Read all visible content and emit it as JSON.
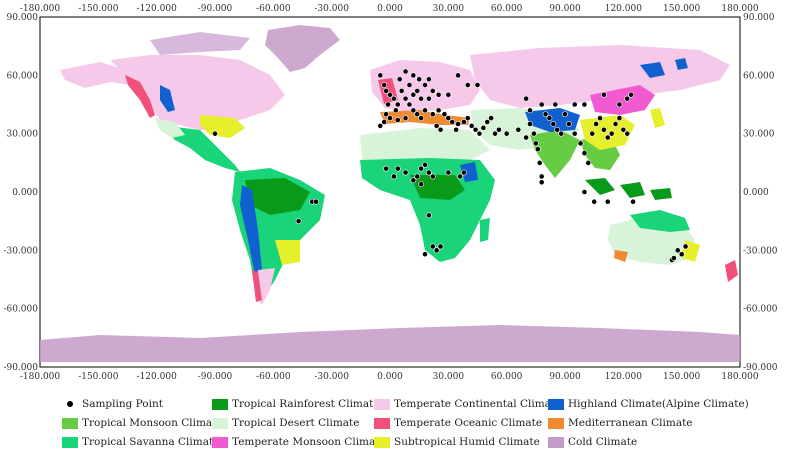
{
  "axes": {
    "x_ticks": [
      "-180.000",
      "-150.000",
      "-120.000",
      "-90.000",
      "-60.000",
      "-30.000",
      "0.000",
      "30.000",
      "60.000",
      "90.000",
      "120.000",
      "150.000",
      "180.000"
    ],
    "y_ticks": [
      "90.000",
      "60.000",
      "30.000",
      "0.000",
      "-30.000",
      "-60.000",
      "-90.000"
    ],
    "x_range": [
      -180,
      180
    ],
    "y_range": [
      -90,
      90
    ]
  },
  "legend": [
    {
      "label": "Sampling Point",
      "color": "#000000",
      "kind": "dot"
    },
    {
      "label": "Tropical Rainforest Climate",
      "color": "#0a9a1a",
      "kind": "swatch"
    },
    {
      "label": "Temperate Continental Climate",
      "color": "#f6c8ea",
      "kind": "swatch"
    },
    {
      "label": "Highland Climate(Alpine Climate)",
      "color": "#1060d0",
      "kind": "swatch"
    },
    {
      "label": "Tropical Monsoon Climate",
      "color": "#66cc44",
      "kind": "swatch"
    },
    {
      "label": "Tropical Desert Climate",
      "color": "#d8f4d8",
      "kind": "swatch"
    },
    {
      "label": "Temperate Oceanic Climate",
      "color": "#f0507a",
      "kind": "swatch"
    },
    {
      "label": "Mediterranean Climate",
      "color": "#f08a30",
      "kind": "swatch"
    },
    {
      "label": "Tropical Savanna Climate",
      "color": "#1ad47a",
      "kind": "swatch"
    },
    {
      "label": "Temperate Monsoon Climate",
      "color": "#f25ad2",
      "kind": "swatch"
    },
    {
      "label": "Subtropical Humid Climate",
      "color": "#e6f02a",
      "kind": "swatch"
    },
    {
      "label": "Cold Climate",
      "color": "#c49ac8",
      "kind": "swatch"
    }
  ],
  "sampling_points": [
    [
      -90,
      30
    ],
    [
      -47,
      -15
    ],
    [
      -40,
      -5
    ],
    [
      -38,
      -5
    ],
    [
      -5,
      60
    ],
    [
      -3,
      55
    ],
    [
      -2,
      52
    ],
    [
      0,
      50
    ],
    [
      2,
      48
    ],
    [
      4,
      45
    ],
    [
      6,
      52
    ],
    [
      8,
      48
    ],
    [
      10,
      45
    ],
    [
      12,
      50
    ],
    [
      14,
      52
    ],
    [
      16,
      48
    ],
    [
      18,
      55
    ],
    [
      20,
      58
    ],
    [
      5,
      58
    ],
    [
      8,
      62
    ],
    [
      12,
      60
    ],
    [
      15,
      58
    ],
    [
      10,
      55
    ],
    [
      -1,
      45
    ],
    [
      3,
      42
    ],
    [
      -2,
      40
    ],
    [
      0,
      38
    ],
    [
      4,
      37
    ],
    [
      8,
      38
    ],
    [
      12,
      42
    ],
    [
      14,
      40
    ],
    [
      16,
      38
    ],
    [
      18,
      42
    ],
    [
      22,
      40
    ],
    [
      25,
      42
    ],
    [
      28,
      40
    ],
    [
      30,
      38
    ],
    [
      32,
      36
    ],
    [
      35,
      35
    ],
    [
      38,
      36
    ],
    [
      40,
      38
    ],
    [
      42,
      34
    ],
    [
      44,
      32
    ],
    [
      46,
      30
    ],
    [
      48,
      33
    ],
    [
      50,
      36
    ],
    [
      52,
      38
    ],
    [
      54,
      30
    ],
    [
      56,
      32
    ],
    [
      60,
      30
    ],
    [
      -3,
      36
    ],
    [
      -5,
      34
    ],
    [
      24,
      34
    ],
    [
      26,
      32
    ],
    [
      34,
      32
    ],
    [
      20,
      48
    ],
    [
      25,
      50
    ],
    [
      30,
      50
    ],
    [
      22,
      52
    ],
    [
      35,
      60
    ],
    [
      40,
      55
    ],
    [
      45,
      55
    ],
    [
      -2,
      12
    ],
    [
      2,
      8
    ],
    [
      4,
      12
    ],
    [
      8,
      10
    ],
    [
      12,
      6
    ],
    [
      14,
      8
    ],
    [
      16,
      12
    ],
    [
      18,
      14
    ],
    [
      20,
      10
    ],
    [
      22,
      8
    ],
    [
      30,
      10
    ],
    [
      36,
      8
    ],
    [
      38,
      10
    ],
    [
      16,
      4
    ],
    [
      20,
      -12
    ],
    [
      22,
      -28
    ],
    [
      24,
      -30
    ],
    [
      26,
      -28
    ],
    [
      18,
      -32
    ],
    [
      66,
      32
    ],
    [
      70,
      28
    ],
    [
      72,
      35
    ],
    [
      74,
      30
    ],
    [
      75,
      25
    ],
    [
      76,
      22
    ],
    [
      77,
      15
    ],
    [
      78,
      8
    ],
    [
      78,
      5
    ],
    [
      80,
      40
    ],
    [
      82,
      38
    ],
    [
      84,
      35
    ],
    [
      86,
      32
    ],
    [
      88,
      30
    ],
    [
      90,
      40
    ],
    [
      92,
      35
    ],
    [
      95,
      30
    ],
    [
      98,
      25
    ],
    [
      100,
      20
    ],
    [
      102,
      15
    ],
    [
      104,
      30
    ],
    [
      106,
      35
    ],
    [
      108,
      38
    ],
    [
      110,
      32
    ],
    [
      112,
      28
    ],
    [
      114,
      30
    ],
    [
      116,
      35
    ],
    [
      118,
      38
    ],
    [
      120,
      32
    ],
    [
      122,
      30
    ],
    [
      118,
      45
    ],
    [
      122,
      48
    ],
    [
      124,
      50
    ],
    [
      110,
      50
    ],
    [
      100,
      45
    ],
    [
      95,
      45
    ],
    [
      85,
      45
    ],
    [
      78,
      45
    ],
    [
      72,
      42
    ],
    [
      70,
      48
    ],
    [
      100,
      0
    ],
    [
      105,
      -5
    ],
    [
      112,
      -5
    ],
    [
      125,
      -5
    ],
    [
      145,
      -35
    ],
    [
      148,
      -30
    ],
    [
      150,
      -32
    ],
    [
      146,
      -34
    ],
    [
      152,
      -28
    ]
  ]
}
